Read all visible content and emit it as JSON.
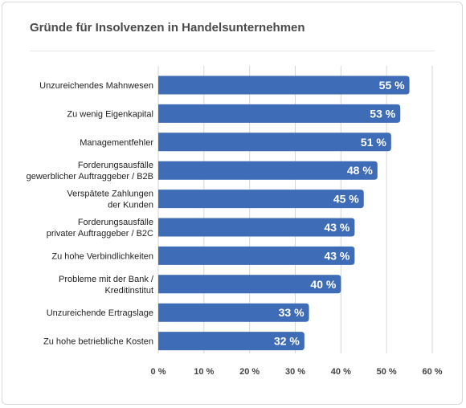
{
  "chart_data": {
    "type": "bar",
    "orientation": "horizontal",
    "title": "Gründe für Insolvenzen in Handelsunternehmen",
    "categories": [
      [
        "Unzureichendes Mahnwesen"
      ],
      [
        "Zu wenig Eigenkapital"
      ],
      [
        "Managementfehler"
      ],
      [
        "Forderungsausfälle",
        "gewerblicher Auftraggeber / B2B"
      ],
      [
        "Verspätete Zahlungen",
        "der Kunden"
      ],
      [
        "Forderungsausfälle",
        "privater Auftraggeber / B2C"
      ],
      [
        "Zu hohe Verbindlichkeiten"
      ],
      [
        "Probleme mit der Bank /",
        "Kreditinstitut"
      ],
      [
        "Unzureichende Ertragslage"
      ],
      [
        "Zu hohe betriebliche Kosten"
      ]
    ],
    "values": [
      55,
      53,
      51,
      48,
      45,
      43,
      43,
      40,
      33,
      32
    ],
    "value_labels": [
      "55 %",
      "53 %",
      "51 %",
      "48 %",
      "45 %",
      "43 %",
      "43 %",
      "40 %",
      "33 %",
      "32 %"
    ],
    "xlim": [
      0,
      60
    ],
    "xticks": [
      0,
      10,
      20,
      30,
      40,
      50,
      60
    ],
    "xtick_labels": [
      "0 %",
      "10 %",
      "20 %",
      "30 %",
      "40 %",
      "50 %",
      "60 %"
    ],
    "grid": true,
    "bar_color": "#3f6cb6",
    "grid_color": "#d6d6d6"
  }
}
